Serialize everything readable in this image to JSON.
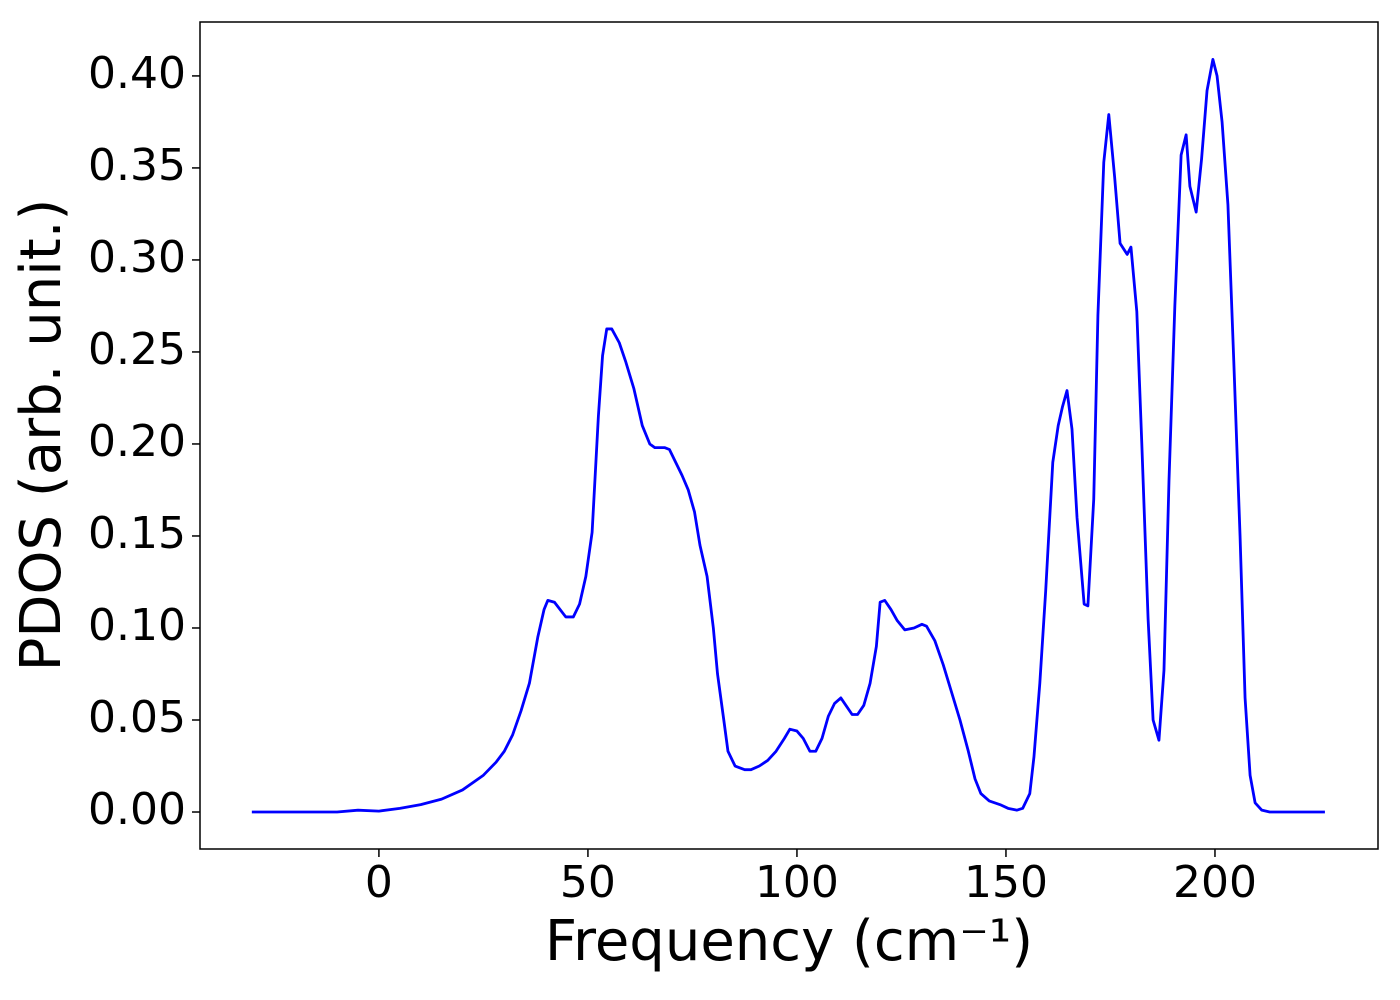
{
  "chart_data": {
    "type": "line",
    "x_label": "Frequency (cm⁻¹)",
    "y_label": "PDOS (arb. unit.)",
    "xlim": [
      -42.8,
      239
    ],
    "ylim": [
      -0.0201,
      0.4293
    ],
    "xticks": [
      0,
      50,
      100,
      150,
      200
    ],
    "yticks": [
      {
        "value": 0,
        "label": "0.00"
      },
      {
        "value": 0.05,
        "label": "0.05"
      },
      {
        "value": 0.1,
        "label": "0.10"
      },
      {
        "value": 0.15,
        "label": "0.15"
      },
      {
        "value": 0.2,
        "label": "0.20"
      },
      {
        "value": 0.25,
        "label": "0.25"
      },
      {
        "value": 0.3,
        "label": "0.30"
      },
      {
        "value": 0.35,
        "label": "0.35"
      },
      {
        "value": 0.4,
        "label": "0.40"
      }
    ],
    "grid": false,
    "x": [
      -30.4,
      -20,
      -10,
      -5,
      0,
      5,
      10,
      15,
      20,
      25,
      28,
      30,
      32,
      34,
      36,
      38,
      39.5,
      40.4,
      42,
      44.7,
      46.5,
      48,
      49.5,
      51,
      52.5,
      53.5,
      54.5,
      55.7,
      57.5,
      59,
      61,
      63,
      64.8,
      66,
      68.4,
      69.5,
      71,
      72.5,
      74,
      75.5,
      76.8,
      78.5,
      80,
      81,
      82.5,
      83.5,
      85.2,
      87.5,
      89,
      91,
      93,
      95,
      97,
      98.3,
      100,
      101.5,
      103.1,
      104.5,
      106,
      107.5,
      109,
      110.5,
      113.2,
      114.5,
      116,
      117.5,
      119,
      119.9,
      121,
      122.5,
      124,
      125.8,
      128,
      129.9,
      131,
      133,
      135,
      137,
      139,
      141,
      142.6,
      144,
      146,
      148.6,
      150.5,
      152.6,
      154,
      155.7,
      156.7,
      158.1,
      159.5,
      161.2,
      162.5,
      163.5,
      164.6,
      165.8,
      167,
      168.7,
      169.6,
      171,
      172,
      173.4,
      174.6,
      176,
      177.3,
      179,
      179.9,
      181.3,
      182.5,
      184,
      185.2,
      186.6,
      187.8,
      189,
      190.4,
      191.9,
      193.1,
      194,
      195.5,
      196.8,
      198.1,
      199.5,
      200.5,
      201.7,
      203.1,
      204.5,
      206,
      207.2,
      208.4,
      209.6,
      211.2,
      213.1,
      226.3
    ],
    "series": [
      {
        "name": "PDOS",
        "color": "#0000ff",
        "values": [
          0,
          0,
          0,
          0.001,
          0.0005,
          0.002,
          0.004,
          0.007,
          0.012,
          0.02,
          0.027,
          0.033,
          0.042,
          0.055,
          0.07,
          0.095,
          0.11,
          0.115,
          0.114,
          0.106,
          0.106,
          0.113,
          0.128,
          0.152,
          0.215,
          0.248,
          0.2625,
          0.2625,
          0.255,
          0.245,
          0.23,
          0.21,
          0.2,
          0.198,
          0.198,
          0.197,
          0.19,
          0.183,
          0.175,
          0.163,
          0.145,
          0.128,
          0.1,
          0.075,
          0.05,
          0.033,
          0.025,
          0.023,
          0.023,
          0.025,
          0.028,
          0.033,
          0.04,
          0.045,
          0.044,
          0.04,
          0.033,
          0.033,
          0.04,
          0.052,
          0.059,
          0.062,
          0.053,
          0.053,
          0.058,
          0.07,
          0.09,
          0.114,
          0.115,
          0.11,
          0.104,
          0.099,
          0.1,
          0.102,
          0.101,
          0.093,
          0.08,
          0.065,
          0.05,
          0.033,
          0.018,
          0.01,
          0.006,
          0.004,
          0.002,
          0.001,
          0.002,
          0.01,
          0.03,
          0.07,
          0.12,
          0.19,
          0.21,
          0.22,
          0.229,
          0.208,
          0.16,
          0.113,
          0.112,
          0.17,
          0.27,
          0.353,
          0.379,
          0.345,
          0.309,
          0.303,
          0.307,
          0.272,
          0.2,
          0.105,
          0.05,
          0.039,
          0.077,
          0.18,
          0.275,
          0.357,
          0.368,
          0.34,
          0.326,
          0.355,
          0.392,
          0.409,
          0.4,
          0.375,
          0.33,
          0.245,
          0.15,
          0.062,
          0.02,
          0.005,
          0.001,
          0,
          0
        ]
      }
    ]
  }
}
